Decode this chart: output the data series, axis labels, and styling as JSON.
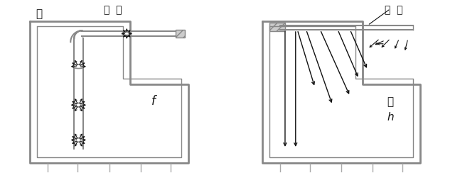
{
  "fig_width": 6.4,
  "fig_height": 2.47,
  "dpi": 100,
  "bg_color": "#ffffff",
  "line_color": "#888888",
  "arrow_color": "#111111",
  "text_color": "#111111",
  "left_label": "良",
  "left_title": "管  道",
  "left_letter": "f",
  "right_label": "良",
  "right_title": "管  道",
  "right_letter": "h"
}
